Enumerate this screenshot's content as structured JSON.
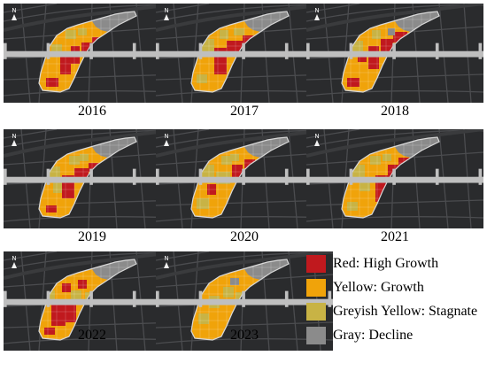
{
  "colors": {
    "red": "#c0191e",
    "yellow": "#f0a30a",
    "greyish_yellow": "#c8b345",
    "gray": "#8b8b8b",
    "map_background": "#2a2b2d",
    "outline": "#d8d8d8"
  },
  "maps": [
    {
      "year": "2016",
      "pattern": 0
    },
    {
      "year": "2017",
      "pattern": 1
    },
    {
      "year": "2018",
      "pattern": 2
    },
    {
      "year": "2019",
      "pattern": 3
    },
    {
      "year": "2020",
      "pattern": 4
    },
    {
      "year": "2021",
      "pattern": 5
    },
    {
      "year": "2022",
      "pattern": 6
    },
    {
      "year": "2023",
      "pattern": 7
    }
  ],
  "north_arrow_label": "N",
  "legend": {
    "items": [
      {
        "color": "#c0191e",
        "label": "Red: High Growth"
      },
      {
        "color": "#f0a30a",
        "label": "Yellow: Growth"
      },
      {
        "color": "#c8b345",
        "label": "Greyish Yellow: Stagnate"
      },
      {
        "color": "#8b8b8b",
        "label": "Gray: Decline"
      }
    ]
  }
}
